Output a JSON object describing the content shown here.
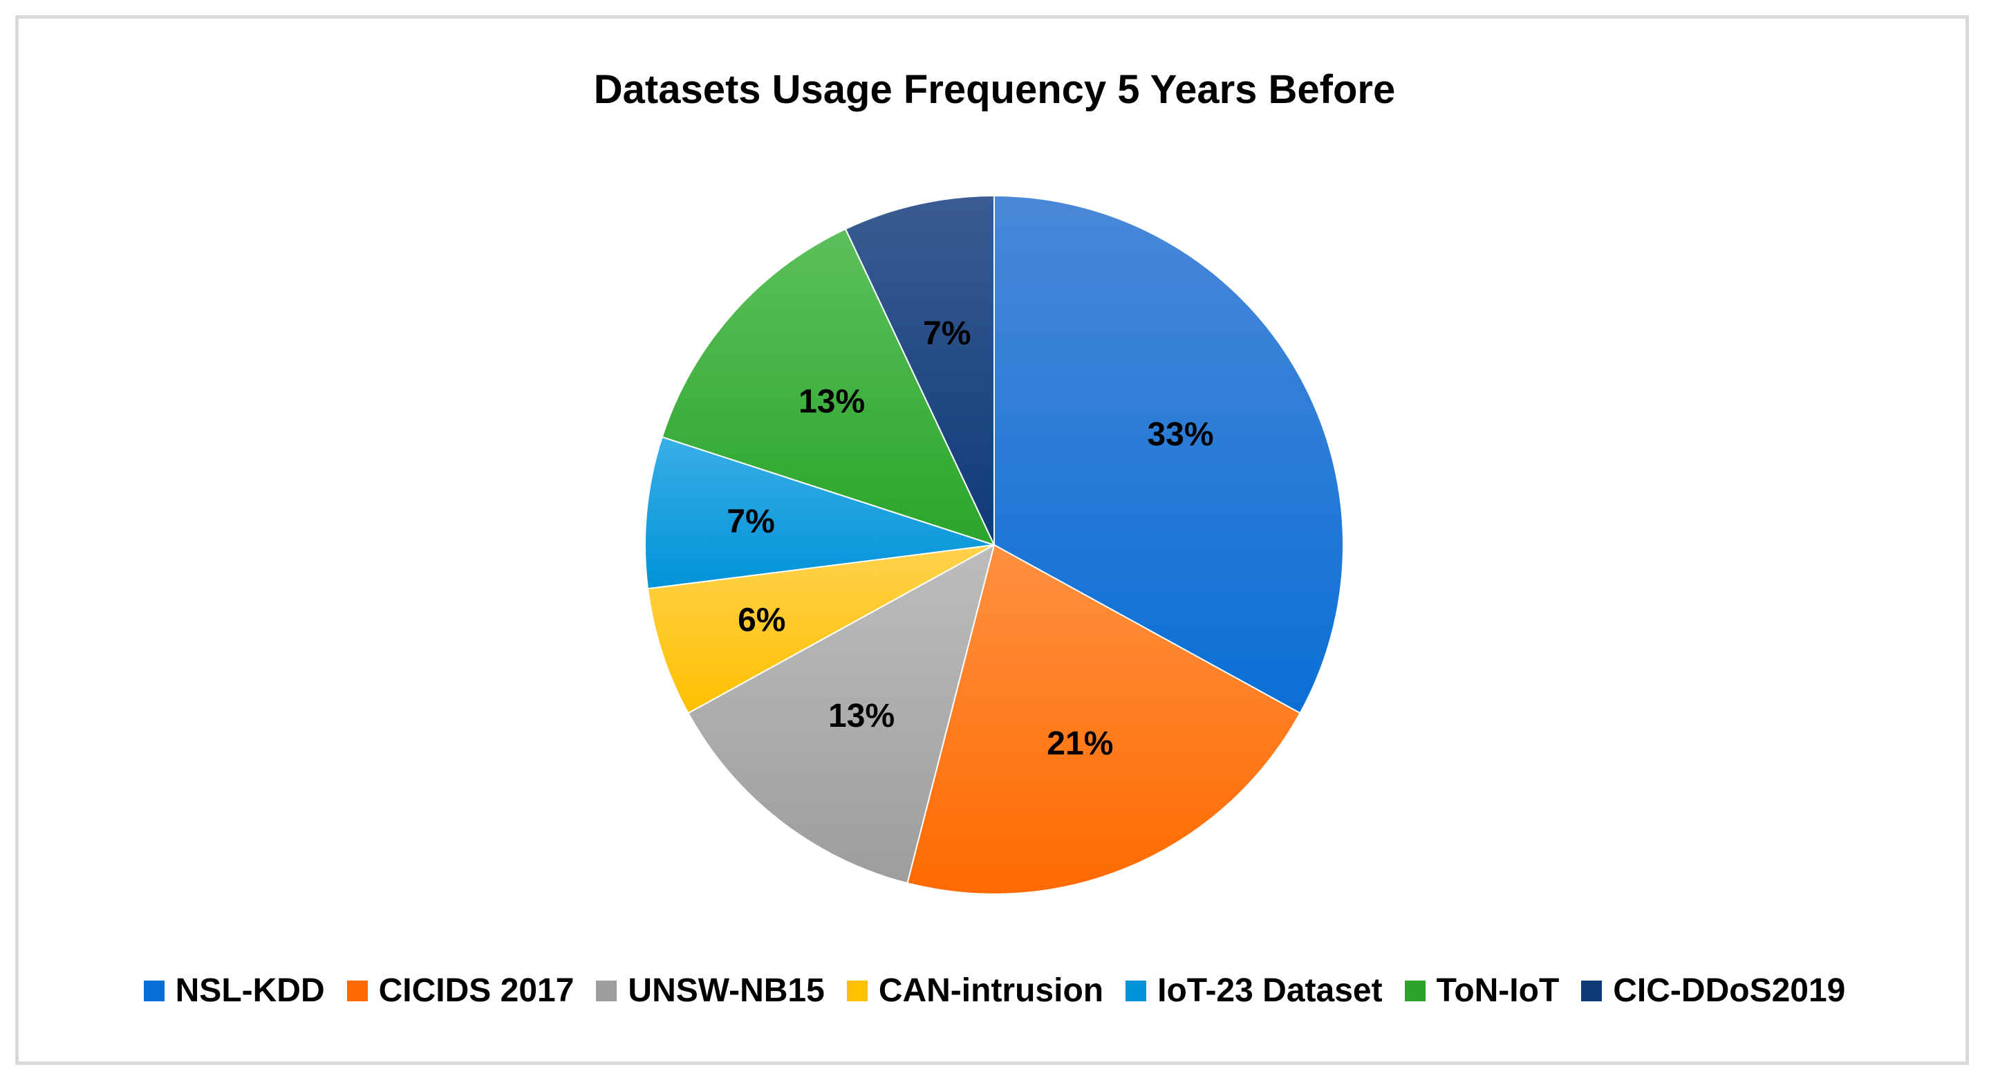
{
  "chart_data": {
    "type": "pie",
    "title": "Datasets Usage Frequency 5 Years Before",
    "legend_position": "bottom",
    "slices": [
      {
        "name": "NSL-KDD",
        "value": 33,
        "label": "33%",
        "color": "#0a6fd6",
        "color_light": "#4a88d8"
      },
      {
        "name": "CICIDS 2017",
        "value": 21,
        "label": "21%",
        "color": "#ff6a00",
        "color_light": "#ff9040"
      },
      {
        "name": "UNSW-NB15",
        "value": 13,
        "label": "13%",
        "color": "#9d9d9d",
        "color_light": "#bdbdbd"
      },
      {
        "name": "CAN-intrusion",
        "value": 6,
        "label": "6%",
        "color": "#ffc000",
        "color_light": "#ffd24d"
      },
      {
        "name": "IoT-23 Dataset",
        "value": 7,
        "label": "7%",
        "color": "#0093d8",
        "color_light": "#3aaee6"
      },
      {
        "name": "ToN-IoT",
        "value": 13,
        "label": "13%",
        "color": "#2aa52a",
        "color_light": "#5cc05c"
      },
      {
        "name": "CIC-DDoS2019",
        "value": 7,
        "label": "7%",
        "color": "#0f3a78",
        "color_light": "#3a5c92"
      }
    ]
  }
}
